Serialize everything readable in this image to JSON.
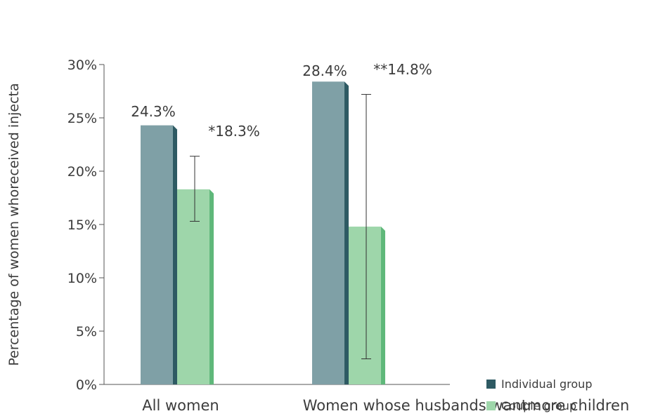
{
  "chart_data": {
    "type": "bar",
    "title": "",
    "xlabel": "",
    "ylabel": "Percentage of women  whoreceived injecta",
    "ylim": [
      0,
      30
    ],
    "yticks": [
      "0%",
      "5%",
      "10%",
      "15%",
      "20%",
      "25%",
      "30%"
    ],
    "categories": [
      "All women",
      "Women whose husbands wantmore children"
    ],
    "series": [
      {
        "name": "Individual group",
        "values": [
          24.3,
          28.4
        ],
        "labels": [
          "24.3%",
          "28.4%"
        ],
        "color": "#7fa0a6",
        "side_color": "#2e5a63"
      },
      {
        "name": "Couple group",
        "values": [
          18.3,
          14.8
        ],
        "labels": [
          "*18.3%",
          "**14.8%"
        ],
        "color": "#9ed6aa",
        "side_color": "#5fb87a",
        "error_low": [
          15.3,
          2.4
        ],
        "error_high": [
          21.4,
          27.2
        ]
      }
    ],
    "legend_position": "bottom-right",
    "grid": false
  }
}
